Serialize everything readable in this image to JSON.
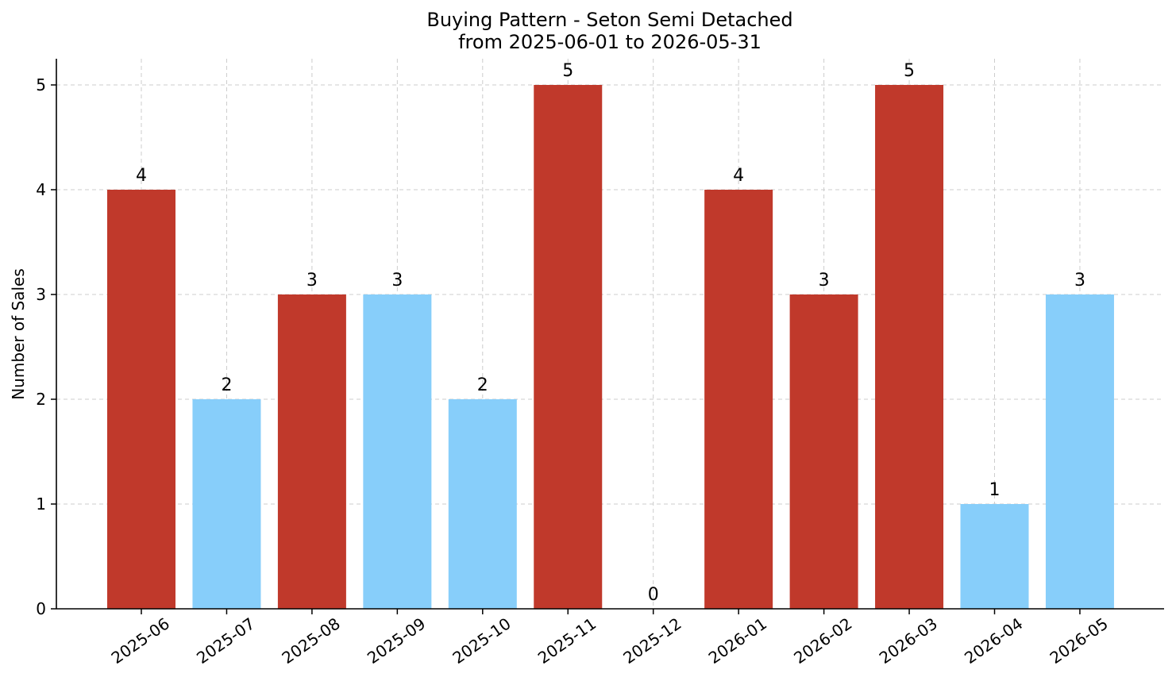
{
  "chart_data": {
    "type": "bar",
    "title": "Buying Pattern - Seton Semi Detached",
    "subtitle": "from 2025-06-01 to 2026-05-31",
    "xlabel": "",
    "ylabel": "Number of Sales",
    "categories": [
      "2025-06",
      "2025-07",
      "2025-08",
      "2025-09",
      "2025-10",
      "2025-11",
      "2025-12",
      "2026-01",
      "2026-02",
      "2026-03",
      "2026-04",
      "2026-05"
    ],
    "values": [
      4,
      2,
      3,
      3,
      2,
      5,
      0,
      4,
      3,
      5,
      1,
      3
    ],
    "bar_colors": [
      "#c0392b",
      "#87cefa",
      "#c0392b",
      "#87cefa",
      "#87cefa",
      "#c0392b",
      "#87cefa",
      "#c0392b",
      "#c0392b",
      "#c0392b",
      "#87cefa",
      "#87cefa"
    ],
    "ylim": [
      0,
      5.25
    ],
    "yticks": [
      0,
      1,
      2,
      3,
      4,
      5
    ],
    "grid": true,
    "legend": "none"
  }
}
